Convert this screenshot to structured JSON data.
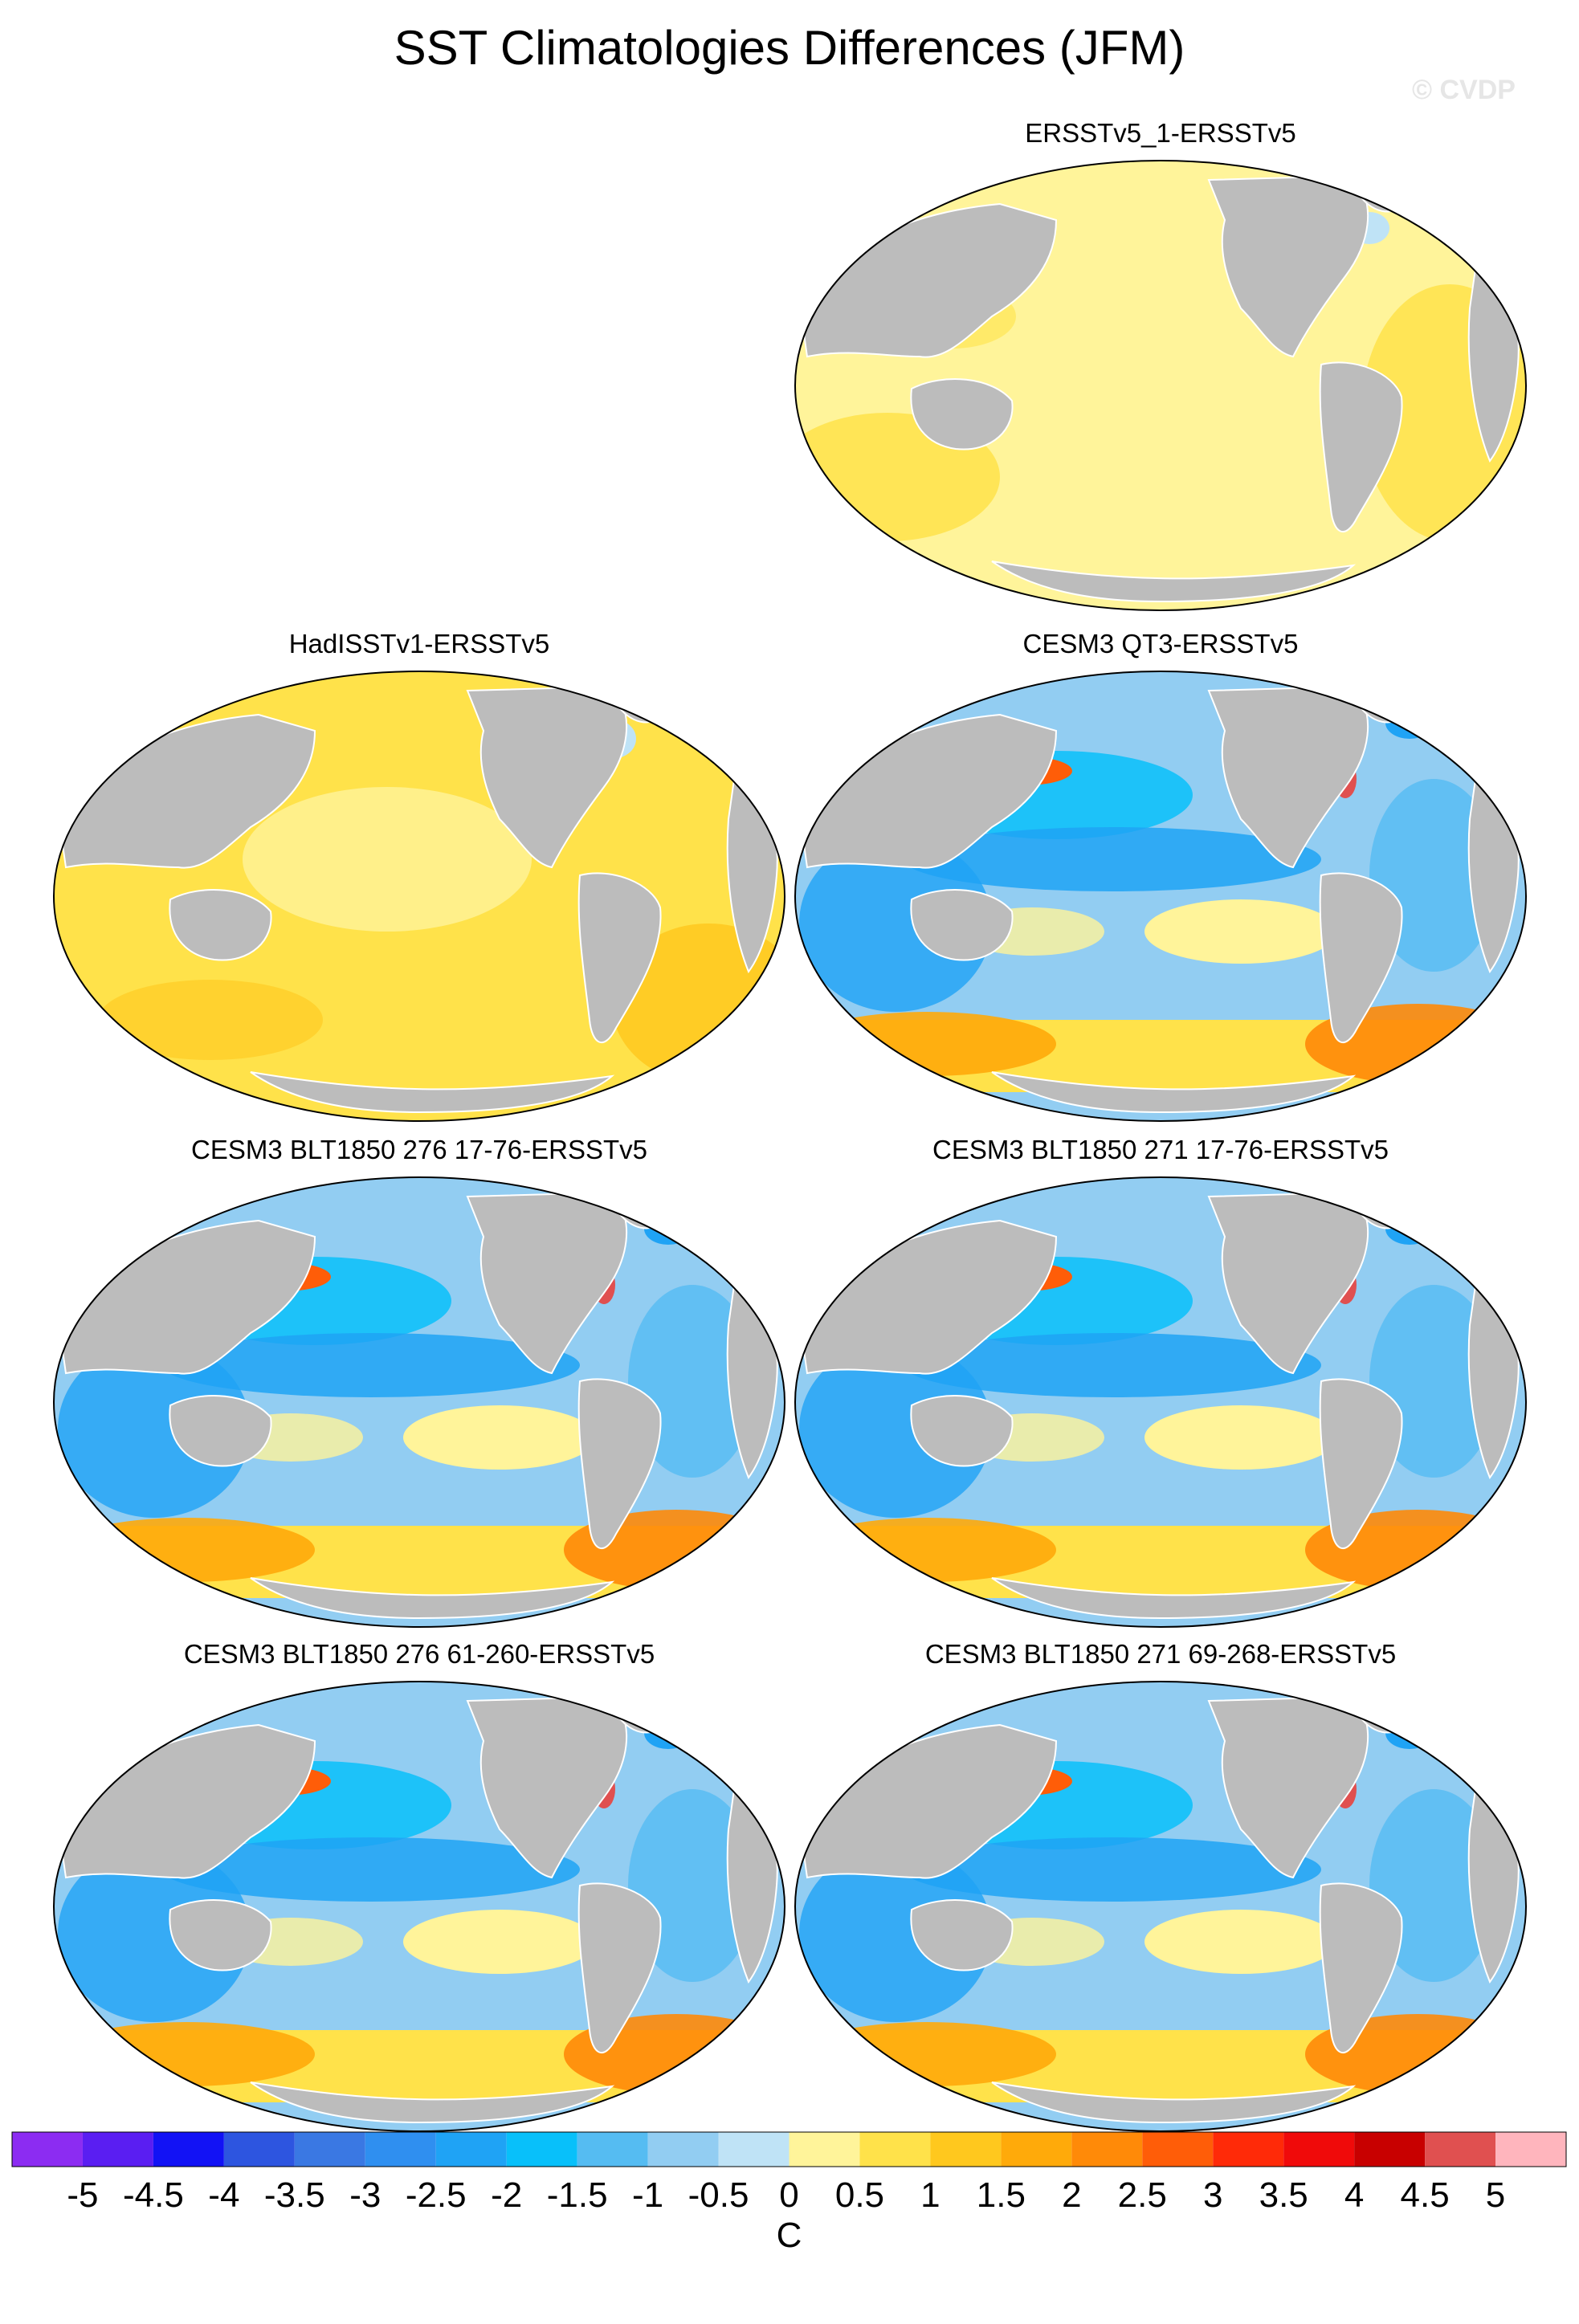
{
  "title": "SST Climatologies Differences (JFM)",
  "watermark": "© CVDP",
  "panels": [
    {
      "title": "ERSSTv5_1-ERSSTv5",
      "pattern": "uniform-slight-warm"
    },
    {
      "title": "HadISSTv1-ERSSTv5",
      "pattern": "uniform-warm"
    },
    {
      "title": "CESM3 QT3-ERSSTv5",
      "pattern": "cold-tropics-warm-southern-ocean"
    },
    {
      "title": "CESM3 BLT1850 276 17-76-ERSSTv5",
      "pattern": "cold-tropics-warm-southern-ocean"
    },
    {
      "title": "CESM3 BLT1850 271 17-76-ERSSTv5",
      "pattern": "cold-tropics-warm-southern-ocean"
    },
    {
      "title": "CESM3 BLT1850 276 61-260-ERSSTv5",
      "pattern": "cold-tropics-warm-southern-ocean"
    },
    {
      "title": "CESM3 BLT1850 271 69-268-ERSSTv5",
      "pattern": "cold-tropics-warm-southern-ocean"
    }
  ],
  "colorbar": {
    "unit": "C",
    "tick_labels": [
      "-5",
      "-4.5",
      "-4",
      "-3.5",
      "-3",
      "-2.5",
      "-2",
      "-1.5",
      "-1",
      "-0.5",
      "0",
      "0.5",
      "1",
      "1.5",
      "2",
      "2.5",
      "3",
      "3.5",
      "4",
      "4.5",
      "5"
    ],
    "colors": [
      "#8c2cf2",
      "#5a1ef2",
      "#1212f5",
      "#2d55e0",
      "#3a78e3",
      "#2f8ff0",
      "#1fa3f5",
      "#08c0fa",
      "#55bcf2",
      "#92cdf2",
      "#bfe3f6",
      "#fff49a",
      "#ffe24a",
      "#ffc81e",
      "#ffaa0a",
      "#ff8a08",
      "#ff5d08",
      "#ff2a08",
      "#f00a0a",
      "#c80000",
      "#e05050",
      "#ffb5bd"
    ]
  }
}
